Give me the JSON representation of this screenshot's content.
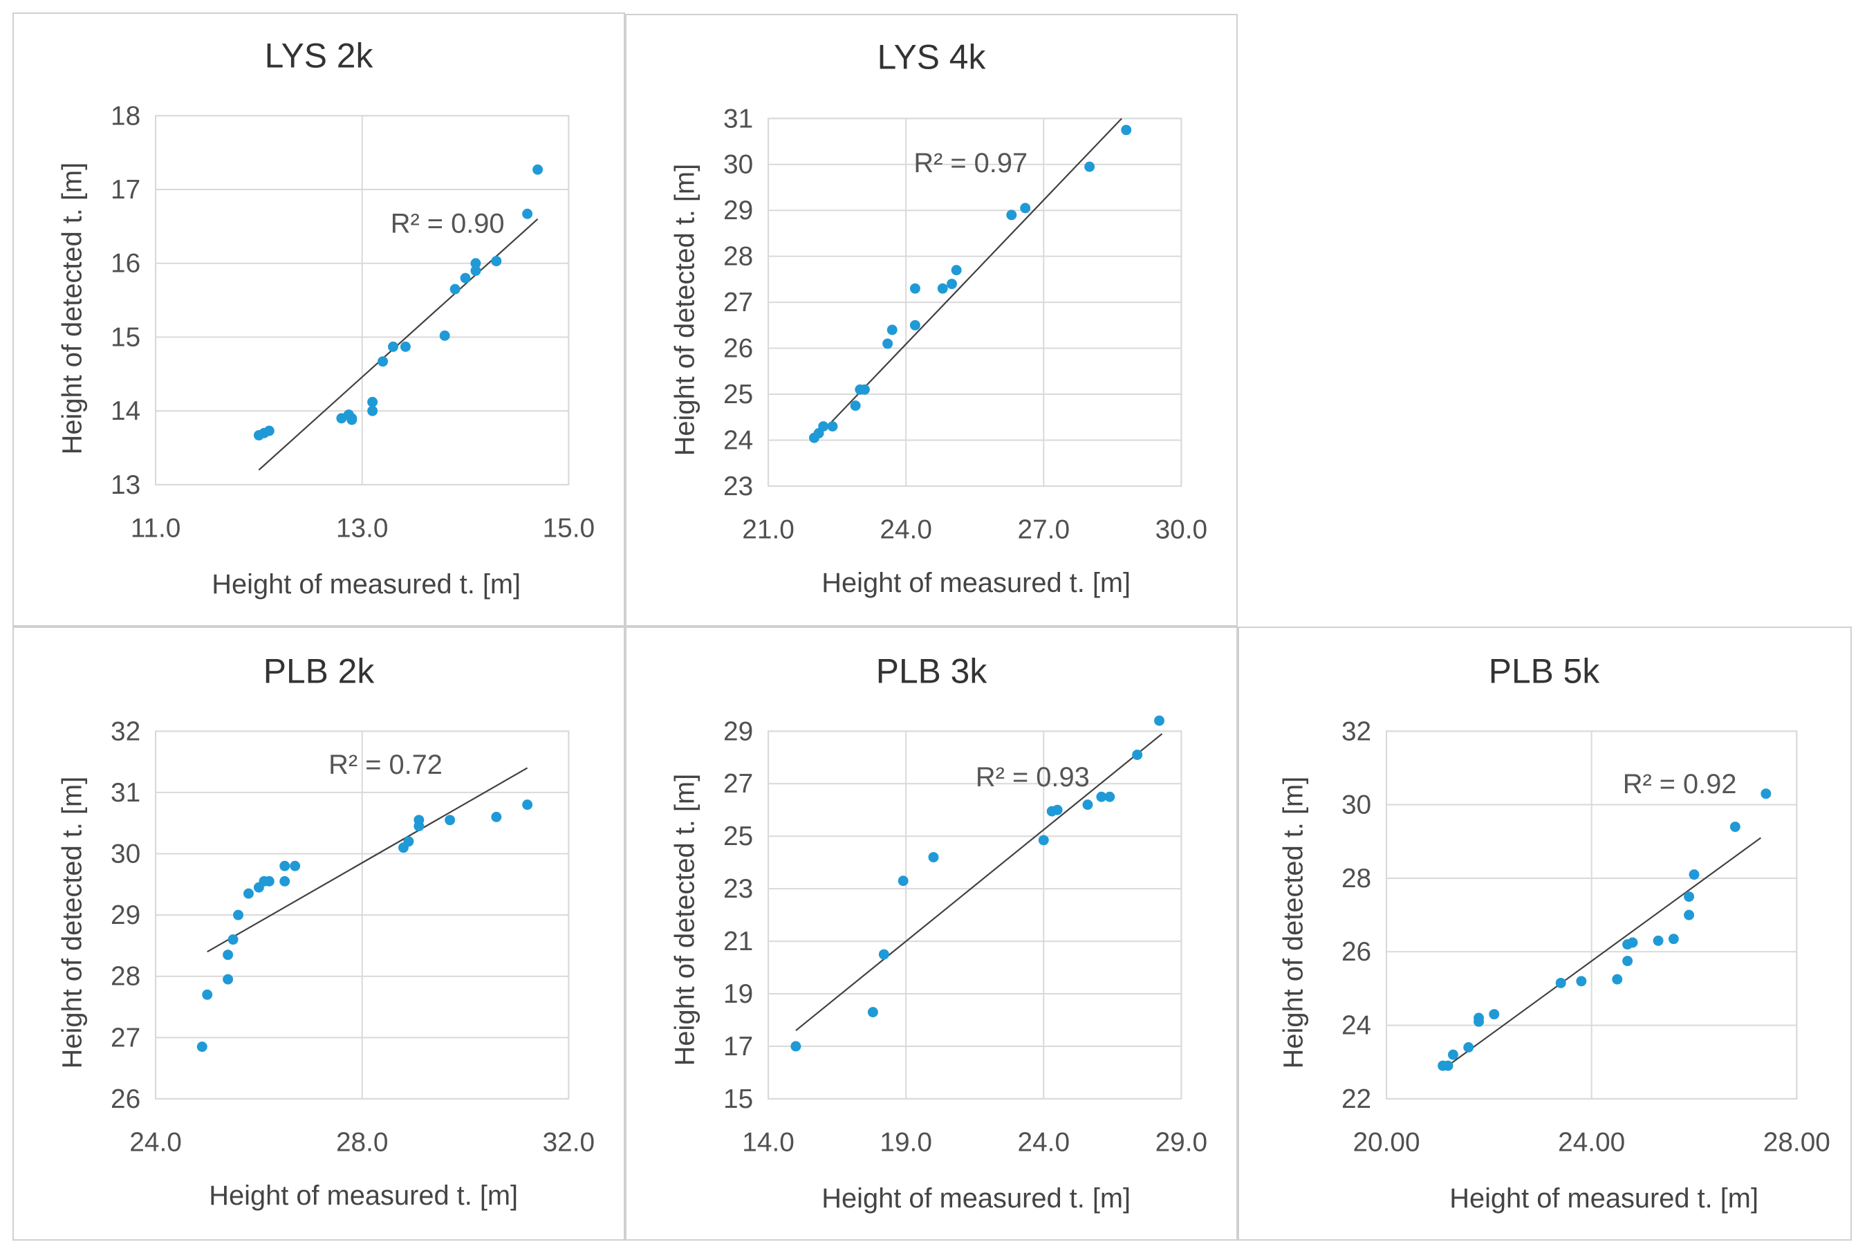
{
  "figure": {
    "x_axis_label": "Height of measured t. [m]",
    "y_axis_label": "Height of detected t. [m]"
  },
  "colors": {
    "marker": "#1f9ad6",
    "trendline": "#404040",
    "grid": "#d9d9d9",
    "border": "#d0d0d0"
  },
  "chart_data": [
    {
      "type": "scatter",
      "title": "LYS 2k",
      "xlabel": "Height of measured t. [m]",
      "ylabel": "Height of detected t. [m]",
      "xlim": [
        11.0,
        15.0
      ],
      "ylim": [
        13,
        18
      ],
      "xticks": [
        11.0,
        13.0,
        15.0
      ],
      "xtick_labels": [
        "11.0",
        "13.0",
        "15.0"
      ],
      "yticks": [
        13,
        14,
        15,
        16,
        17,
        18
      ],
      "ytick_labels": [
        "13",
        "14",
        "15",
        "16",
        "17",
        "18"
      ],
      "r2_label": "R² = 0.90",
      "trendline": {
        "x": [
          12.0,
          14.7
        ],
        "y": [
          13.2,
          16.6
        ]
      },
      "x": [
        12.0,
        12.05,
        12.1,
        12.8,
        12.87,
        12.9,
        12.9,
        13.1,
        13.1,
        13.2,
        13.3,
        13.42,
        13.8,
        13.9,
        14.0,
        14.1,
        14.1,
        14.3,
        14.6,
        14.7
      ],
      "y": [
        13.67,
        13.7,
        13.73,
        13.9,
        13.95,
        13.9,
        13.88,
        14.0,
        14.12,
        14.67,
        14.87,
        14.87,
        15.02,
        15.65,
        15.8,
        15.9,
        16.0,
        16.03,
        16.67,
        17.27
      ]
    },
    {
      "type": "scatter",
      "title": "LYS 4k",
      "xlabel": "Height of measured t. [m]",
      "ylabel": "Height of detected t. [m]",
      "xlim": [
        21.0,
        30.0
      ],
      "ylim": [
        23,
        31
      ],
      "xticks": [
        21.0,
        24.0,
        27.0,
        30.0
      ],
      "xtick_labels": [
        "21.0",
        "24.0",
        "27.0",
        "30.0"
      ],
      "yticks": [
        23,
        24,
        25,
        26,
        27,
        28,
        29,
        30,
        31
      ],
      "ytick_labels": [
        "23",
        "24",
        "25",
        "26",
        "27",
        "28",
        "29",
        "30",
        "31"
      ],
      "r2_label": "R² = 0.97",
      "trendline": {
        "x": [
          22.0,
          28.7
        ],
        "y": [
          24.0,
          31.0
        ]
      },
      "x": [
        22.0,
        22.1,
        22.2,
        22.4,
        22.9,
        23.0,
        23.1,
        23.6,
        23.7,
        24.2,
        24.2,
        24.8,
        25.0,
        25.1,
        26.3,
        26.6,
        28.0,
        28.8
      ],
      "y": [
        24.05,
        24.15,
        24.3,
        24.3,
        24.75,
        25.1,
        25.1,
        26.1,
        26.4,
        26.5,
        27.3,
        27.3,
        27.4,
        27.7,
        28.9,
        29.05,
        29.95,
        30.75
      ]
    },
    {
      "type": "scatter",
      "title": "PLB 2k",
      "xlabel": "Height of measured t. [m]",
      "ylabel": "Height of detected t. [m]",
      "xlim": [
        24.0,
        32.0
      ],
      "ylim": [
        26,
        32
      ],
      "xticks": [
        24.0,
        28.0,
        32.0
      ],
      "xtick_labels": [
        "24.0",
        "28.0",
        "32.0"
      ],
      "yticks": [
        26,
        27,
        28,
        29,
        30,
        31,
        32
      ],
      "ytick_labels": [
        "26",
        "27",
        "28",
        "29",
        "30",
        "31",
        "32"
      ],
      "r2_label": "R² = 0.72",
      "trendline": {
        "x": [
          25.0,
          31.2
        ],
        "y": [
          28.4,
          31.4
        ]
      },
      "x": [
        24.9,
        25.0,
        25.4,
        25.4,
        25.5,
        25.6,
        25.8,
        26.0,
        26.1,
        26.2,
        26.5,
        26.5,
        26.7,
        28.8,
        28.9,
        29.1,
        29.1,
        29.7,
        30.6,
        31.2
      ],
      "y": [
        26.85,
        27.7,
        27.95,
        28.35,
        28.6,
        29.0,
        29.35,
        29.45,
        29.55,
        29.55,
        29.55,
        29.8,
        29.8,
        30.1,
        30.2,
        30.45,
        30.55,
        30.55,
        30.6,
        30.8
      ]
    },
    {
      "type": "scatter",
      "title": "PLB 3k",
      "xlabel": "Height of measured t. [m]",
      "ylabel": "Height of detected t. [m]",
      "xlim": [
        14.0,
        29.0
      ],
      "ylim": [
        15,
        29
      ],
      "xticks": [
        14.0,
        19.0,
        24.0,
        29.0
      ],
      "xtick_labels": [
        "14.0",
        "19.0",
        "24.0",
        "29.0"
      ],
      "yticks": [
        15,
        17,
        19,
        21,
        23,
        25,
        27,
        29
      ],
      "ytick_labels": [
        "15",
        "17",
        "19",
        "21",
        "23",
        "25",
        "27",
        "29"
      ],
      "r2_label": "R² = 0.93",
      "trendline": {
        "x": [
          15.0,
          28.3
        ],
        "y": [
          17.6,
          28.9
        ]
      },
      "x": [
        15.0,
        17.8,
        18.2,
        18.9,
        20.0,
        24.0,
        24.3,
        24.5,
        25.6,
        26.1,
        26.4,
        27.4,
        28.2
      ],
      "y": [
        17.0,
        18.3,
        20.5,
        23.3,
        24.2,
        24.85,
        25.95,
        26.0,
        26.2,
        26.5,
        26.5,
        28.1,
        29.4
      ]
    },
    {
      "type": "scatter",
      "title": "PLB 5k",
      "xlabel": "Height of measured t. [m]",
      "ylabel": "Height of detected t. [m]",
      "xlim": [
        20.0,
        28.0
      ],
      "ylim": [
        22,
        32
      ],
      "xticks": [
        20.0,
        24.0,
        28.0
      ],
      "xtick_labels": [
        "20.00",
        "24.00",
        "28.00"
      ],
      "yticks": [
        22,
        24,
        26,
        28,
        30,
        32
      ],
      "ytick_labels": [
        "22",
        "24",
        "26",
        "28",
        "30",
        "32"
      ],
      "r2_label": "R² = 0.92",
      "trendline": {
        "x": [
          21.1,
          27.3
        ],
        "y": [
          22.8,
          29.1
        ]
      },
      "x": [
        21.1,
        21.2,
        21.3,
        21.6,
        21.8,
        21.8,
        22.1,
        23.4,
        23.8,
        24.5,
        24.7,
        24.7,
        24.8,
        25.3,
        25.6,
        25.9,
        25.9,
        26.0,
        26.8,
        27.4
      ],
      "y": [
        22.9,
        22.9,
        23.2,
        23.4,
        24.1,
        24.2,
        24.3,
        25.15,
        25.2,
        25.25,
        25.75,
        26.2,
        26.25,
        26.3,
        26.35,
        27.0,
        27.5,
        28.1,
        29.4,
        30.3
      ]
    }
  ]
}
